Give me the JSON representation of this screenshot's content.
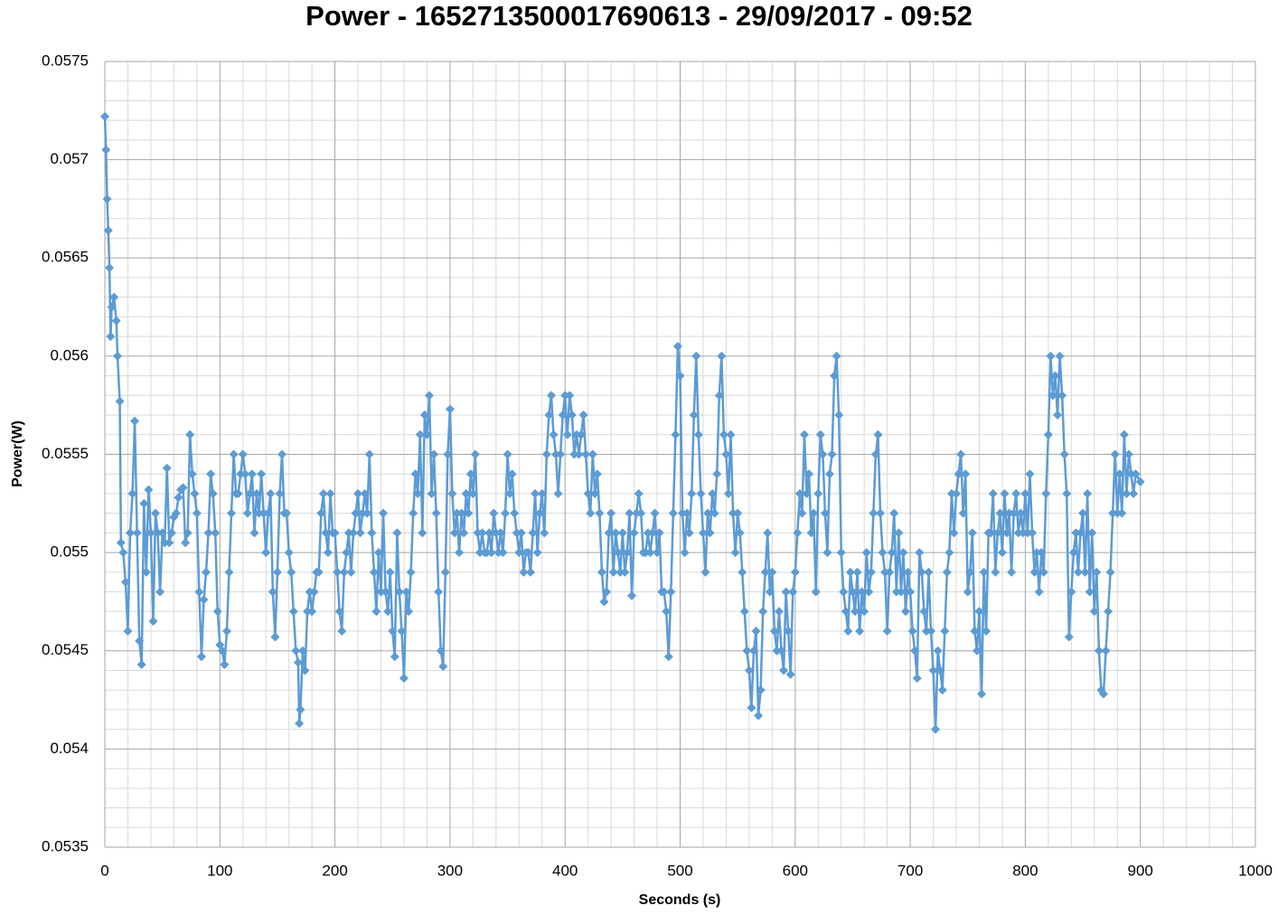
{
  "chart_data": {
    "type": "line",
    "title": "Power - 1652713500017690613 - 29/09/2017 - 09:52",
    "x_label": "Seconds (s)",
    "y_label": "Power(W)",
    "xlim": [
      0,
      1000
    ],
    "xticks": [
      0,
      100,
      200,
      300,
      400,
      500,
      600,
      700,
      800,
      900,
      1000
    ],
    "ylim": [
      0.0535,
      0.0575
    ],
    "yticks": [
      0.0535,
      0.054,
      0.0545,
      0.055,
      0.0555,
      0.056,
      0.0565,
      0.057,
      0.0575
    ],
    "grid": true,
    "minor_grid": true,
    "marker": "diamond",
    "series": [
      {
        "name": "Power",
        "color": "#5b9bd5",
        "x": [
          0,
          1,
          2,
          3,
          4,
          5,
          6,
          8,
          10,
          11,
          13,
          14,
          16,
          18,
          20,
          22,
          24,
          26,
          28,
          30,
          32,
          34,
          36,
          38,
          40,
          42,
          44,
          46,
          48,
          50,
          52,
          54,
          56,
          58,
          60,
          62,
          64,
          66,
          68,
          70,
          72,
          74,
          76,
          78,
          80,
          82,
          84,
          86,
          88,
          90,
          92,
          94,
          96,
          98,
          100,
          102,
          104,
          106,
          108,
          110,
          112,
          114,
          116,
          118,
          120,
          122,
          124,
          126,
          128,
          130,
          132,
          134,
          136,
          138,
          140,
          142,
          144,
          146,
          148,
          150,
          152,
          154,
          156,
          158,
          160,
          162,
          164,
          166,
          168,
          169,
          170,
          172,
          174,
          176,
          178,
          180,
          182,
          184,
          186,
          188,
          190,
          192,
          194,
          196,
          198,
          200,
          202,
          204,
          206,
          208,
          210,
          212,
          214,
          216,
          218,
          220,
          222,
          224,
          226,
          228,
          230,
          232,
          234,
          236,
          238,
          240,
          242,
          244,
          246,
          248,
          250,
          252,
          254,
          256,
          258,
          260,
          262,
          264,
          266,
          268,
          270,
          272,
          274,
          276,
          278,
          280,
          282,
          284,
          286,
          288,
          290,
          292,
          294,
          296,
          298,
          300,
          302,
          304,
          306,
          308,
          310,
          312,
          314,
          316,
          318,
          320,
          322,
          324,
          326,
          328,
          330,
          332,
          334,
          336,
          338,
          340,
          342,
          344,
          346,
          348,
          350,
          352,
          354,
          356,
          358,
          360,
          362,
          364,
          366,
          368,
          370,
          372,
          374,
          376,
          378,
          380,
          382,
          384,
          386,
          388,
          390,
          392,
          394,
          396,
          398,
          400,
          402,
          404,
          406,
          408,
          410,
          412,
          414,
          416,
          418,
          420,
          422,
          424,
          426,
          428,
          430,
          432,
          434,
          436,
          438,
          440,
          442,
          444,
          446,
          448,
          450,
          452,
          454,
          456,
          458,
          460,
          462,
          464,
          466,
          468,
          470,
          472,
          474,
          476,
          478,
          480,
          482,
          484,
          486,
          488,
          490,
          492,
          494,
          496,
          498,
          500,
          502,
          504,
          506,
          508,
          510,
          512,
          514,
          516,
          518,
          520,
          522,
          524,
          526,
          528,
          530,
          532,
          534,
          536,
          538,
          540,
          542,
          544,
          546,
          548,
          550,
          552,
          554,
          556,
          558,
          560,
          562,
          564,
          566,
          568,
          570,
          572,
          574,
          576,
          578,
          580,
          582,
          584,
          586,
          588,
          590,
          592,
          594,
          596,
          598,
          600,
          602,
          604,
          606,
          608,
          610,
          612,
          614,
          616,
          618,
          620,
          622,
          624,
          626,
          628,
          630,
          632,
          634,
          636,
          638,
          640,
          642,
          644,
          646,
          648,
          650,
          652,
          654,
          656,
          658,
          660,
          662,
          664,
          666,
          668,
          670,
          672,
          674,
          676,
          678,
          680,
          682,
          684,
          686,
          688,
          690,
          692,
          694,
          696,
          698,
          700,
          702,
          704,
          706,
          708,
          710,
          712,
          714,
          716,
          718,
          720,
          722,
          724,
          726,
          728,
          730,
          732,
          734,
          736,
          738,
          740,
          742,
          744,
          746,
          748,
          750,
          752,
          754,
          756,
          758,
          760,
          762,
          764,
          766,
          768,
          770,
          772,
          774,
          776,
          778,
          780,
          782,
          784,
          786,
          788,
          790,
          792,
          794,
          796,
          798,
          800,
          802,
          804,
          806,
          808,
          810,
          812,
          814,
          816,
          818,
          820,
          822,
          824,
          826,
          828,
          830,
          832,
          834,
          836,
          838,
          840,
          842,
          844,
          846,
          848,
          850,
          852,
          854,
          856,
          858,
          860,
          862,
          864,
          866,
          868,
          870,
          872,
          874,
          876,
          878,
          880,
          882,
          884,
          886,
          888,
          890,
          892,
          894,
          896,
          900
        ],
        "values": [
          0.05722,
          0.05705,
          0.0568,
          0.05664,
          0.05645,
          0.0561,
          0.05625,
          0.0563,
          0.05618,
          0.056,
          0.05577,
          0.05505,
          0.055,
          0.05485,
          0.0546,
          0.0551,
          0.0553,
          0.05567,
          0.0551,
          0.05455,
          0.05443,
          0.05525,
          0.0549,
          0.05532,
          0.0551,
          0.05465,
          0.0552,
          0.0551,
          0.0548,
          0.0551,
          0.05505,
          0.05543,
          0.05505,
          0.0551,
          0.05518,
          0.0552,
          0.05528,
          0.05532,
          0.05533,
          0.05505,
          0.0551,
          0.0556,
          0.0554,
          0.0553,
          0.0552,
          0.0548,
          0.05447,
          0.05476,
          0.0549,
          0.0551,
          0.0554,
          0.0553,
          0.0551,
          0.0547,
          0.05453,
          0.0545,
          0.05443,
          0.0546,
          0.0549,
          0.0552,
          0.0555,
          0.0553,
          0.0553,
          0.0554,
          0.0555,
          0.0554,
          0.0552,
          0.0553,
          0.0554,
          0.0551,
          0.0553,
          0.0552,
          0.0554,
          0.0552,
          0.055,
          0.0552,
          0.0553,
          0.0548,
          0.05457,
          0.0549,
          0.0553,
          0.0555,
          0.0552,
          0.0552,
          0.055,
          0.0549,
          0.0547,
          0.0545,
          0.05444,
          0.05413,
          0.0542,
          0.0545,
          0.0544,
          0.0547,
          0.0548,
          0.0547,
          0.0548,
          0.0549,
          0.0549,
          0.0552,
          0.0553,
          0.0551,
          0.055,
          0.0553,
          0.0551,
          0.0551,
          0.0549,
          0.0547,
          0.0546,
          0.0549,
          0.055,
          0.0551,
          0.0549,
          0.0551,
          0.0552,
          0.0553,
          0.0551,
          0.0552,
          0.0553,
          0.0552,
          0.0555,
          0.0551,
          0.0549,
          0.0547,
          0.055,
          0.0548,
          0.0552,
          0.0548,
          0.0547,
          0.0549,
          0.0546,
          0.05447,
          0.0551,
          0.0548,
          0.0546,
          0.05436,
          0.0548,
          0.0547,
          0.0549,
          0.0552,
          0.0554,
          0.0553,
          0.0556,
          0.0551,
          0.0557,
          0.0556,
          0.0558,
          0.0553,
          0.0555,
          0.0552,
          0.0548,
          0.0545,
          0.05442,
          0.0549,
          0.0555,
          0.05573,
          0.0553,
          0.0551,
          0.0552,
          0.055,
          0.0552,
          0.0551,
          0.0553,
          0.0552,
          0.0554,
          0.0553,
          0.0555,
          0.0551,
          0.055,
          0.0551,
          0.055,
          0.055,
          0.0551,
          0.055,
          0.0552,
          0.0551,
          0.055,
          0.0551,
          0.055,
          0.0552,
          0.0555,
          0.0553,
          0.0554,
          0.0552,
          0.0551,
          0.055,
          0.0551,
          0.0549,
          0.055,
          0.055,
          0.0549,
          0.0551,
          0.0553,
          0.055,
          0.0552,
          0.0553,
          0.0551,
          0.0555,
          0.0557,
          0.0558,
          0.0556,
          0.0555,
          0.0553,
          0.0555,
          0.0557,
          0.0558,
          0.0556,
          0.0558,
          0.0557,
          0.0555,
          0.0556,
          0.0555,
          0.0556,
          0.0557,
          0.0555,
          0.0553,
          0.0552,
          0.0555,
          0.0553,
          0.0554,
          0.0552,
          0.0549,
          0.05475,
          0.0548,
          0.0551,
          0.0552,
          0.0549,
          0.0551,
          0.055,
          0.0549,
          0.0551,
          0.0549,
          0.055,
          0.0552,
          0.05478,
          0.0551,
          0.0552,
          0.0553,
          0.0552,
          0.055,
          0.055,
          0.0551,
          0.055,
          0.0551,
          0.0552,
          0.055,
          0.0551,
          0.0548,
          0.0548,
          0.0547,
          0.05447,
          0.0548,
          0.0552,
          0.0556,
          0.05605,
          0.0559,
          0.0552,
          0.055,
          0.0552,
          0.0551,
          0.0553,
          0.0557,
          0.056,
          0.0556,
          0.0553,
          0.0551,
          0.0549,
          0.0552,
          0.0551,
          0.0553,
          0.0552,
          0.0554,
          0.0558,
          0.056,
          0.0556,
          0.0555,
          0.0553,
          0.0556,
          0.0552,
          0.055,
          0.0552,
          0.0551,
          0.0549,
          0.0547,
          0.0545,
          0.0544,
          0.05421,
          0.0545,
          0.0546,
          0.05417,
          0.0543,
          0.0547,
          0.0549,
          0.0551,
          0.0548,
          0.0549,
          0.0546,
          0.0545,
          0.0547,
          0.0545,
          0.0544,
          0.0548,
          0.0546,
          0.05438,
          0.0548,
          0.0549,
          0.0551,
          0.0553,
          0.0552,
          0.0556,
          0.0553,
          0.0554,
          0.0551,
          0.0552,
          0.0548,
          0.0553,
          0.0556,
          0.0555,
          0.0552,
          0.055,
          0.0554,
          0.0555,
          0.0559,
          0.056,
          0.0557,
          0.055,
          0.0548,
          0.0547,
          0.0546,
          0.0549,
          0.0548,
          0.0547,
          0.0549,
          0.0546,
          0.0548,
          0.0547,
          0.055,
          0.0548,
          0.0549,
          0.0552,
          0.0555,
          0.0556,
          0.0552,
          0.055,
          0.0549,
          0.0546,
          0.0549,
          0.055,
          0.0552,
          0.0548,
          0.0551,
          0.0548,
          0.055,
          0.0547,
          0.0549,
          0.0548,
          0.0546,
          0.0545,
          0.05436,
          0.055,
          0.0549,
          0.0547,
          0.0546,
          0.0549,
          0.0546,
          0.0544,
          0.0541,
          0.0545,
          0.0544,
          0.0543,
          0.0546,
          0.0549,
          0.055,
          0.0553,
          0.0551,
          0.0553,
          0.0554,
          0.0555,
          0.0552,
          0.0554,
          0.0548,
          0.0549,
          0.0551,
          0.0546,
          0.0545,
          0.0547,
          0.05428,
          0.0549,
          0.0546,
          0.0551,
          0.0551,
          0.0553,
          0.0549,
          0.0551,
          0.0552,
          0.055,
          0.0553,
          0.0551,
          0.0552,
          0.0549,
          0.0552,
          0.0553,
          0.0551,
          0.0552,
          0.0551,
          0.0553,
          0.0551,
          0.0554,
          0.0551,
          0.0549,
          0.055,
          0.0548,
          0.055,
          0.0549,
          0.0553,
          0.0556,
          0.056,
          0.0558,
          0.0559,
          0.0557,
          0.056,
          0.0558,
          0.0555,
          0.0553,
          0.05457,
          0.0548,
          0.055,
          0.0551,
          0.0549,
          0.0551,
          0.0552,
          0.0549,
          0.0553,
          0.0548,
          0.0551,
          0.0547,
          0.0549,
          0.0545,
          0.0543,
          0.05428,
          0.0545,
          0.0547,
          0.0549,
          0.0552,
          0.0555,
          0.0552,
          0.0554,
          0.0552,
          0.0556,
          0.0553,
          0.0555,
          0.0554,
          0.0553,
          0.0554,
          0.05536
        ]
      }
    ]
  }
}
